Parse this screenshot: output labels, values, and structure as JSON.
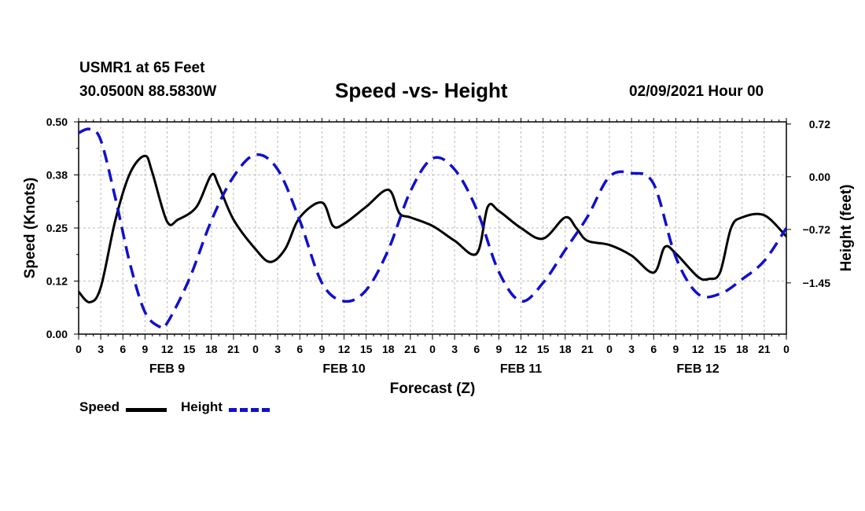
{
  "chart_data": {
    "type": "line",
    "station": "USMR1 at 65 Feet",
    "location": "30.0500N 88.5830W",
    "title": "Speed -vs- Height",
    "date_label": "02/09/2021 Hour 00",
    "xlabel": "Forecast (Z)",
    "ylabel_left": "Speed (Knots)",
    "ylabel_right": "Height (feet)",
    "x_range_hours": [
      0,
      96
    ],
    "left_ylim": [
      0,
      0.5
    ],
    "right_ylim": [
      -2.15,
      0.75
    ],
    "left_ticks": [
      "0.00",
      "0.12",
      "0.25",
      "0.38",
      "0.50"
    ],
    "left_tick_values": [
      0,
      0.125,
      0.25,
      0.375,
      0.5
    ],
    "right_ticks": [
      "0.72",
      "0.00",
      "−0.72",
      "−1.45"
    ],
    "right_tick_values": [
      0.72,
      0,
      -0.72,
      -1.45
    ],
    "x_tick_labels": [
      "0",
      "3",
      "6",
      "9",
      "12",
      "15",
      "18",
      "21",
      "0",
      "3",
      "6",
      "9",
      "12",
      "15",
      "18",
      "21",
      "0",
      "3",
      "6",
      "9",
      "12",
      "15",
      "18",
      "21",
      "0",
      "3",
      "6",
      "9",
      "12",
      "15",
      "18",
      "21",
      "0"
    ],
    "day_labels": [
      {
        "label": "FEB 9",
        "hour": 12
      },
      {
        "label": "FEB 10",
        "hour": 36
      },
      {
        "label": "FEB 11",
        "hour": 60
      },
      {
        "label": "FEB 12",
        "hour": 84
      }
    ],
    "series": [
      {
        "name": "Speed",
        "axis": "left",
        "color": "#000000",
        "style": "solid",
        "x": [
          0,
          1.5,
          3,
          5,
          7,
          9,
          10,
          12,
          13.5,
          16,
          18,
          19,
          21,
          24,
          26,
          28,
          30,
          33,
          34.5,
          36,
          39,
          42,
          43.5,
          45,
          48,
          51,
          54,
          55.5,
          57,
          60,
          63,
          66,
          67.5,
          69,
          72,
          75,
          78,
          79.5,
          81,
          84,
          85.5,
          87,
          88.5,
          90,
          93,
          96
        ],
        "values": [
          0.1,
          0.075,
          0.11,
          0.27,
          0.38,
          0.42,
          0.38,
          0.265,
          0.27,
          0.3,
          0.375,
          0.35,
          0.27,
          0.2,
          0.17,
          0.2,
          0.275,
          0.31,
          0.255,
          0.26,
          0.3,
          0.34,
          0.285,
          0.275,
          0.255,
          0.22,
          0.19,
          0.3,
          0.29,
          0.25,
          0.225,
          0.275,
          0.25,
          0.22,
          0.21,
          0.185,
          0.145,
          0.205,
          0.19,
          0.135,
          0.13,
          0.145,
          0.25,
          0.275,
          0.28,
          0.23
        ]
      },
      {
        "name": "Height",
        "axis": "right",
        "color": "#1010cc",
        "style": "dashed",
        "x": [
          0,
          1.5,
          3,
          5,
          7,
          9,
          11,
          12,
          15,
          18,
          21,
          24,
          27,
          30,
          33,
          36,
          39,
          42,
          45,
          48,
          51,
          54,
          57,
          60,
          63,
          66,
          69,
          72,
          75,
          78,
          81,
          84,
          87,
          90,
          93,
          96
        ],
        "values": [
          0.6,
          0.65,
          0.5,
          -0.3,
          -1.2,
          -1.85,
          -2.05,
          -2.0,
          -1.4,
          -0.6,
          0.0,
          0.3,
          0.1,
          -0.6,
          -1.45,
          -1.7,
          -1.55,
          -1.0,
          -0.2,
          0.25,
          0.1,
          -0.45,
          -1.3,
          -1.7,
          -1.45,
          -1.0,
          -0.55,
          0.0,
          0.05,
          -0.1,
          -1.1,
          -1.6,
          -1.6,
          -1.4,
          -1.15,
          -0.7
        ]
      }
    ]
  }
}
